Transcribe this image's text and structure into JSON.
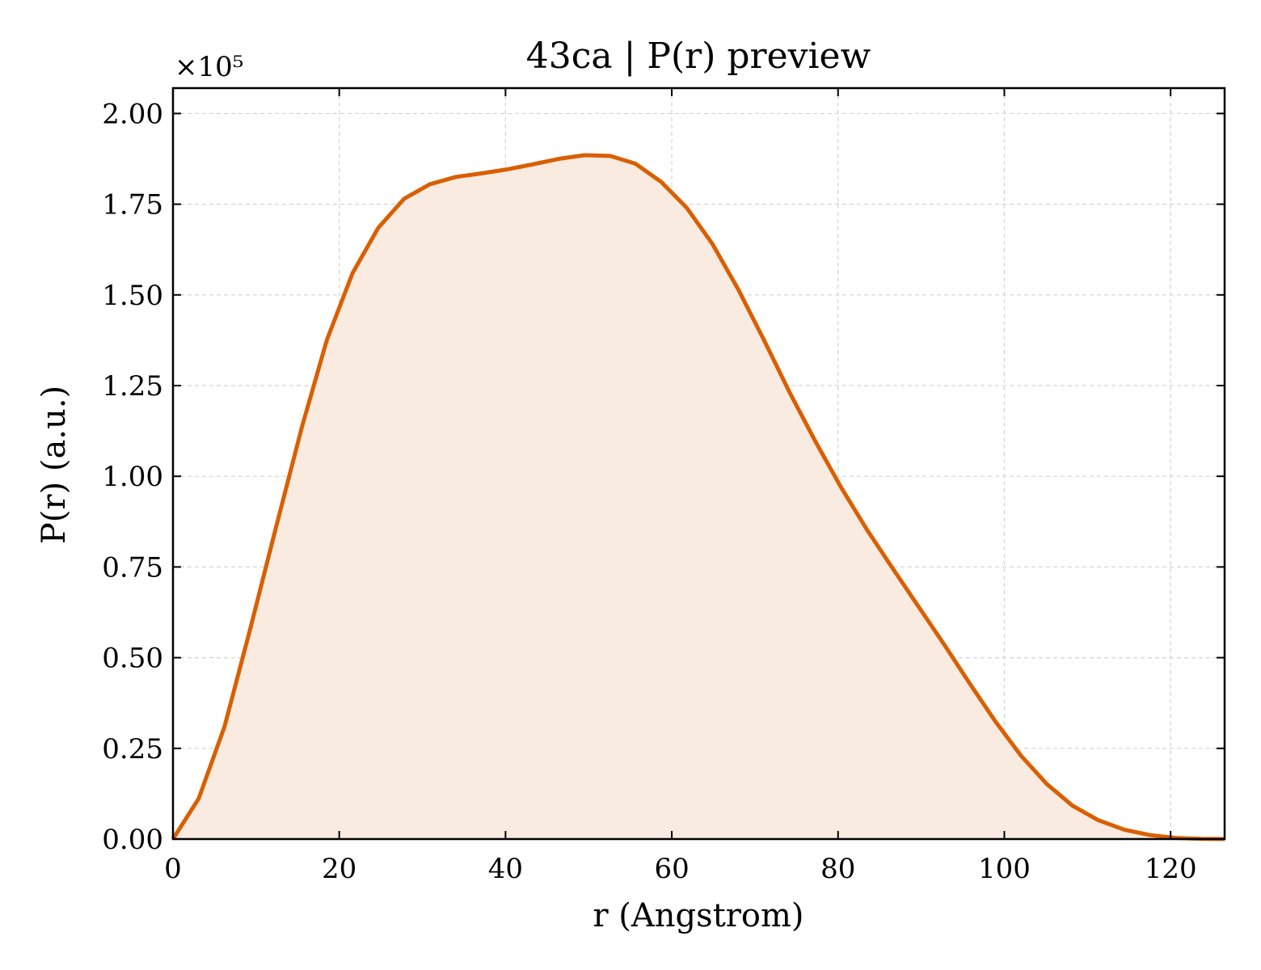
{
  "chart_data": {
    "type": "area",
    "title": "43ca | P(r) preview",
    "xlabel": "r (Angstrom)",
    "ylabel": "P(r) (a.u.)",
    "y_scale_label": "×10⁵",
    "xlim": [
      0,
      126.5
    ],
    "ylim": [
      0,
      2.07
    ],
    "x_ticks": [
      0,
      20,
      40,
      60,
      80,
      100,
      120
    ],
    "x_tick_labels": [
      "0",
      "20",
      "40",
      "60",
      "80",
      "100",
      "120"
    ],
    "y_ticks": [
      0,
      0.25,
      0.5,
      0.75,
      1.0,
      1.25,
      1.5,
      1.75,
      2.0
    ],
    "y_tick_labels": [
      "0.00",
      "0.25",
      "0.50",
      "0.75",
      "1.00",
      "1.25",
      "1.50",
      "1.75",
      "2.00"
    ],
    "grid": true,
    "colors": {
      "line": "#d95f02",
      "fill": "#f9ebe0",
      "grid": "#d3d3d3",
      "axis": "#000000"
    },
    "series": [
      {
        "x": [
          0,
          3.1,
          6.2,
          9.3,
          12.4,
          15.5,
          18.5,
          21.6,
          24.7,
          27.8,
          30.9,
          34,
          37.1,
          40.2,
          43.3,
          46.4,
          49.5,
          52.6,
          55.6,
          58.7,
          61.8,
          64.9,
          68,
          71.1,
          74.2,
          77.3,
          80.4,
          83.5,
          86.6,
          89.7,
          92.8,
          95.8,
          98.9,
          102,
          105.1,
          108.2,
          111.3,
          114.4,
          117.5,
          120.6,
          123.7,
          126.5
        ],
        "y": [
          0.0,
          0.112,
          0.31,
          0.58,
          0.86,
          1.135,
          1.375,
          1.56,
          1.685,
          1.765,
          1.805,
          1.825,
          1.835,
          1.846,
          1.86,
          1.875,
          1.885,
          1.883,
          1.862,
          1.812,
          1.74,
          1.64,
          1.515,
          1.375,
          1.23,
          1.095,
          0.968,
          0.852,
          0.745,
          0.64,
          0.535,
          0.43,
          0.325,
          0.23,
          0.152,
          0.092,
          0.052,
          0.026,
          0.011,
          0.003,
          0.0005,
          0.0
        ]
      }
    ]
  }
}
